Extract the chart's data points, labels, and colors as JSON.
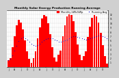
{
  "title": "Monthly Solar Energy Production Running Average",
  "title_fontsize": 3.2,
  "bg_color": "#d0d0d0",
  "plot_bg": "#ffffff",
  "bar_color": "#ff0000",
  "avg_color": "#0000cc",
  "grid_color": "#aaaaaa",
  "values": [
    1.5,
    2.0,
    4.5,
    7.0,
    9.5,
    10.8,
    10.2,
    8.5,
    6.0,
    3.5,
    1.8,
    1.0,
    2.0,
    3.5,
    6.5,
    9.0,
    11.0,
    11.8,
    11.5,
    10.0,
    7.5,
    4.5,
    2.2,
    1.2,
    2.8,
    3.8,
    7.0,
    9.5,
    11.5,
    12.0,
    11.8,
    10.5,
    8.0,
    5.2,
    2.8,
    1.5,
    2.5,
    3.5,
    6.8,
    9.2,
    11.2,
    11.8,
    11.5,
    10.2,
    7.8,
    5.0,
    2.5,
    0.8
  ],
  "running_avg": [
    1.5,
    1.8,
    2.7,
    3.8,
    4.9,
    5.9,
    6.6,
    6.8,
    6.6,
    6.2,
    5.8,
    5.3,
    5.0,
    4.9,
    5.0,
    5.3,
    5.7,
    6.1,
    6.4,
    6.6,
    6.6,
    6.5,
    6.3,
    6.0,
    5.8,
    5.8,
    5.9,
    6.1,
    6.3,
    6.6,
    6.8,
    7.0,
    7.0,
    6.9,
    6.7,
    6.5,
    6.4,
    6.3,
    6.4,
    6.5,
    6.7,
    6.9,
    7.0,
    7.1,
    7.1,
    7.0,
    6.9,
    6.6
  ],
  "ylim": [
    0,
    13
  ],
  "yticks": [
    1,
    2,
    3,
    4,
    5,
    6,
    7,
    8,
    9,
    10,
    11,
    12
  ],
  "tick_fontsize": 2.2,
  "legend_fontsize": 2.5,
  "legend_bar": "Monthly kWh/kWp",
  "legend_avg": "Running Avg",
  "n_bars": 48
}
